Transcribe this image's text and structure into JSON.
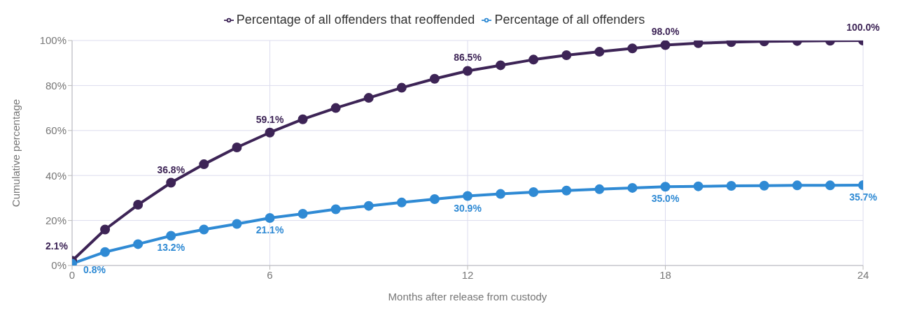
{
  "chart_data": {
    "type": "line",
    "xlabel": "Months after release from custody",
    "ylabel": "Cumulative percentage",
    "x": [
      0,
      1,
      2,
      3,
      4,
      5,
      6,
      7,
      8,
      9,
      10,
      11,
      12,
      13,
      14,
      15,
      16,
      17,
      18,
      19,
      20,
      21,
      22,
      23,
      24
    ],
    "series": [
      {
        "name": "Percentage of all offenders that reoffended",
        "color": "#3d2456",
        "values": [
          2.1,
          16,
          27,
          36.8,
          45,
          52.5,
          59.1,
          65,
          70,
          74.5,
          79,
          83,
          86.5,
          89,
          91.5,
          93.5,
          95,
          96.5,
          98.0,
          98.8,
          99.3,
          99.6,
          99.8,
          99.9,
          100.0
        ],
        "value_labels": [
          "2.1%",
          null,
          null,
          "36.8%",
          null,
          null,
          "59.1%",
          null,
          null,
          null,
          null,
          null,
          "86.5%",
          null,
          null,
          null,
          null,
          null,
          "98.0%",
          null,
          null,
          null,
          null,
          null,
          "100.0%"
        ]
      },
      {
        "name": "Percentage of all offenders",
        "color": "#2f8ad4",
        "values": [
          0.8,
          6,
          9.5,
          13.2,
          16,
          18.5,
          21.1,
          23,
          25,
          26.5,
          28,
          29.5,
          30.9,
          31.8,
          32.6,
          33.3,
          33.9,
          34.5,
          35.0,
          35.2,
          35.4,
          35.5,
          35.6,
          35.6,
          35.7
        ],
        "value_labels": [
          "0.8%",
          null,
          null,
          "13.2%",
          null,
          null,
          "21.1%",
          null,
          null,
          null,
          null,
          null,
          "30.9%",
          null,
          null,
          null,
          null,
          null,
          "35.0%",
          null,
          null,
          null,
          null,
          null,
          "35.7%"
        ]
      }
    ],
    "xlim": [
      0,
      24
    ],
    "xticks": [
      0,
      6,
      12,
      18,
      24
    ],
    "ylim": [
      0,
      100
    ],
    "yticks": [
      {
        "value": 0,
        "label": "0%"
      },
      {
        "value": 20,
        "label": "20%"
      },
      {
        "value": 40,
        "label": "40%"
      },
      {
        "value": 60,
        "label": "60%"
      },
      {
        "value": 80,
        "label": "80%"
      },
      {
        "value": 100,
        "label": "100%"
      }
    ],
    "grid": true,
    "legend": "top",
    "marker": "circle",
    "line_style": "solid"
  }
}
